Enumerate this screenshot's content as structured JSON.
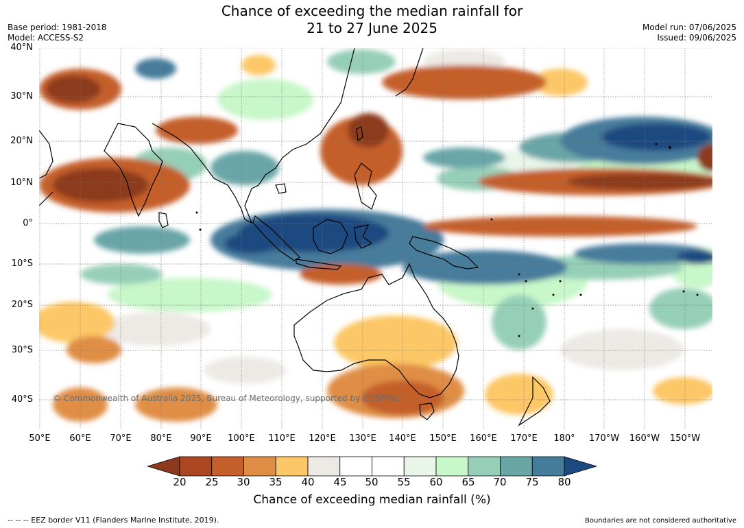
{
  "title": {
    "line1": "Chance of exceeding the median rainfall for",
    "line2": "21 to 27 June 2025"
  },
  "meta_left": {
    "base_period": "Base period: 1981-2018",
    "model": "Model: ACCESS-S2"
  },
  "meta_right": {
    "model_run": "Model run: 07/06/2025",
    "issued": "Issued: 09/06/2025"
  },
  "map": {
    "lat_labels": [
      "40°N",
      "30°N",
      "20°N",
      "10°N",
      "0°",
      "10°S",
      "20°S",
      "30°S",
      "40°S"
    ],
    "lon_labels": [
      "50°E",
      "60°E",
      "70°E",
      "80°E",
      "90°E",
      "100°E",
      "110°E",
      "120°E",
      "130°E",
      "140°E",
      "150°E",
      "160°E",
      "170°E",
      "180°",
      "170°W",
      "160°W",
      "150°W"
    ],
    "copyright": "© Commonwealth of Australia 2025, Bureau of Meteorology, supported by COSPPac"
  },
  "colorbar": {
    "ticks": [
      "20",
      "25",
      "30",
      "35",
      "40",
      "45",
      "50",
      "55",
      "60",
      "65",
      "70",
      "75",
      "80"
    ],
    "colors": [
      "#8c3a1d",
      "#ad4622",
      "#c55f2c",
      "#e08e45",
      "#fcc766",
      "#edeae5",
      "#ffffff",
      "#ffffff",
      "#e8f5e8",
      "#c8f7c9",
      "#96cfb8",
      "#6ba6a7",
      "#467c9b",
      "#1a4a80"
    ],
    "label": "Chance of exceeding median rainfall (%)"
  },
  "footer": {
    "eez": "--  --  -- EEZ border V11 (Flanders Marine Institute, 2019).",
    "note": "Boundaries are not considered authoritative"
  }
}
